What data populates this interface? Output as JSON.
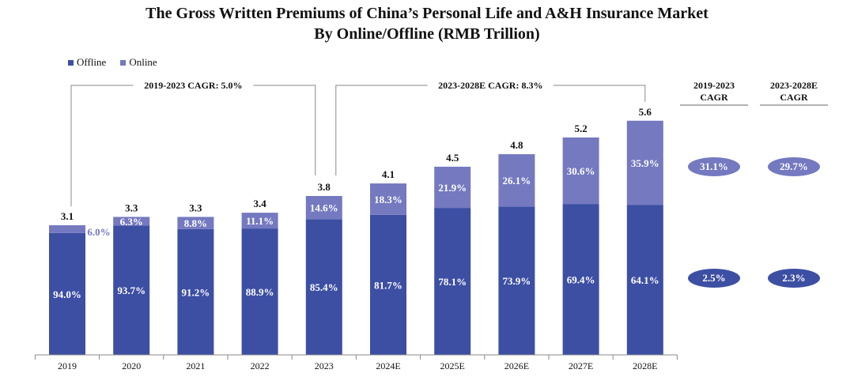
{
  "title_line1": "The Gross Written Premiums of China’s Personal Life and A&H Insurance Market",
  "title_line2": "By Online/Offline (RMB Trillion)",
  "chart_data": {
    "type": "bar",
    "stacked": true,
    "categories": [
      "2019",
      "2020",
      "2021",
      "2022",
      "2023",
      "2024E",
      "2025E",
      "2026E",
      "2027E",
      "2028E"
    ],
    "totals": [
      3.1,
      3.3,
      3.3,
      3.4,
      3.8,
      4.1,
      4.5,
      4.8,
      5.2,
      5.6
    ],
    "series": [
      {
        "name": "Offline",
        "color": "#3d4fa3",
        "share_pct": [
          94.0,
          93.7,
          91.2,
          88.9,
          85.4,
          81.7,
          78.1,
          73.9,
          69.4,
          64.1
        ]
      },
      {
        "name": "Online",
        "color": "#7479c0",
        "share_pct": [
          6.0,
          6.3,
          8.8,
          11.1,
          14.6,
          18.3,
          21.9,
          26.1,
          30.6,
          35.9
        ]
      }
    ],
    "legend_position": "top-left",
    "cagr_brackets": [
      {
        "label": "2019-2023 CAGR: 5.0%"
      },
      {
        "label": "2023-2028E CAGR: 8.3%"
      }
    ],
    "cagr_table": {
      "headers": [
        "2019-2023\nCAGR",
        "2023-2028E\nCAGR"
      ],
      "online": [
        "31.1%",
        "29.7%"
      ],
      "offline": [
        "2.5%",
        "2.3%"
      ]
    }
  }
}
